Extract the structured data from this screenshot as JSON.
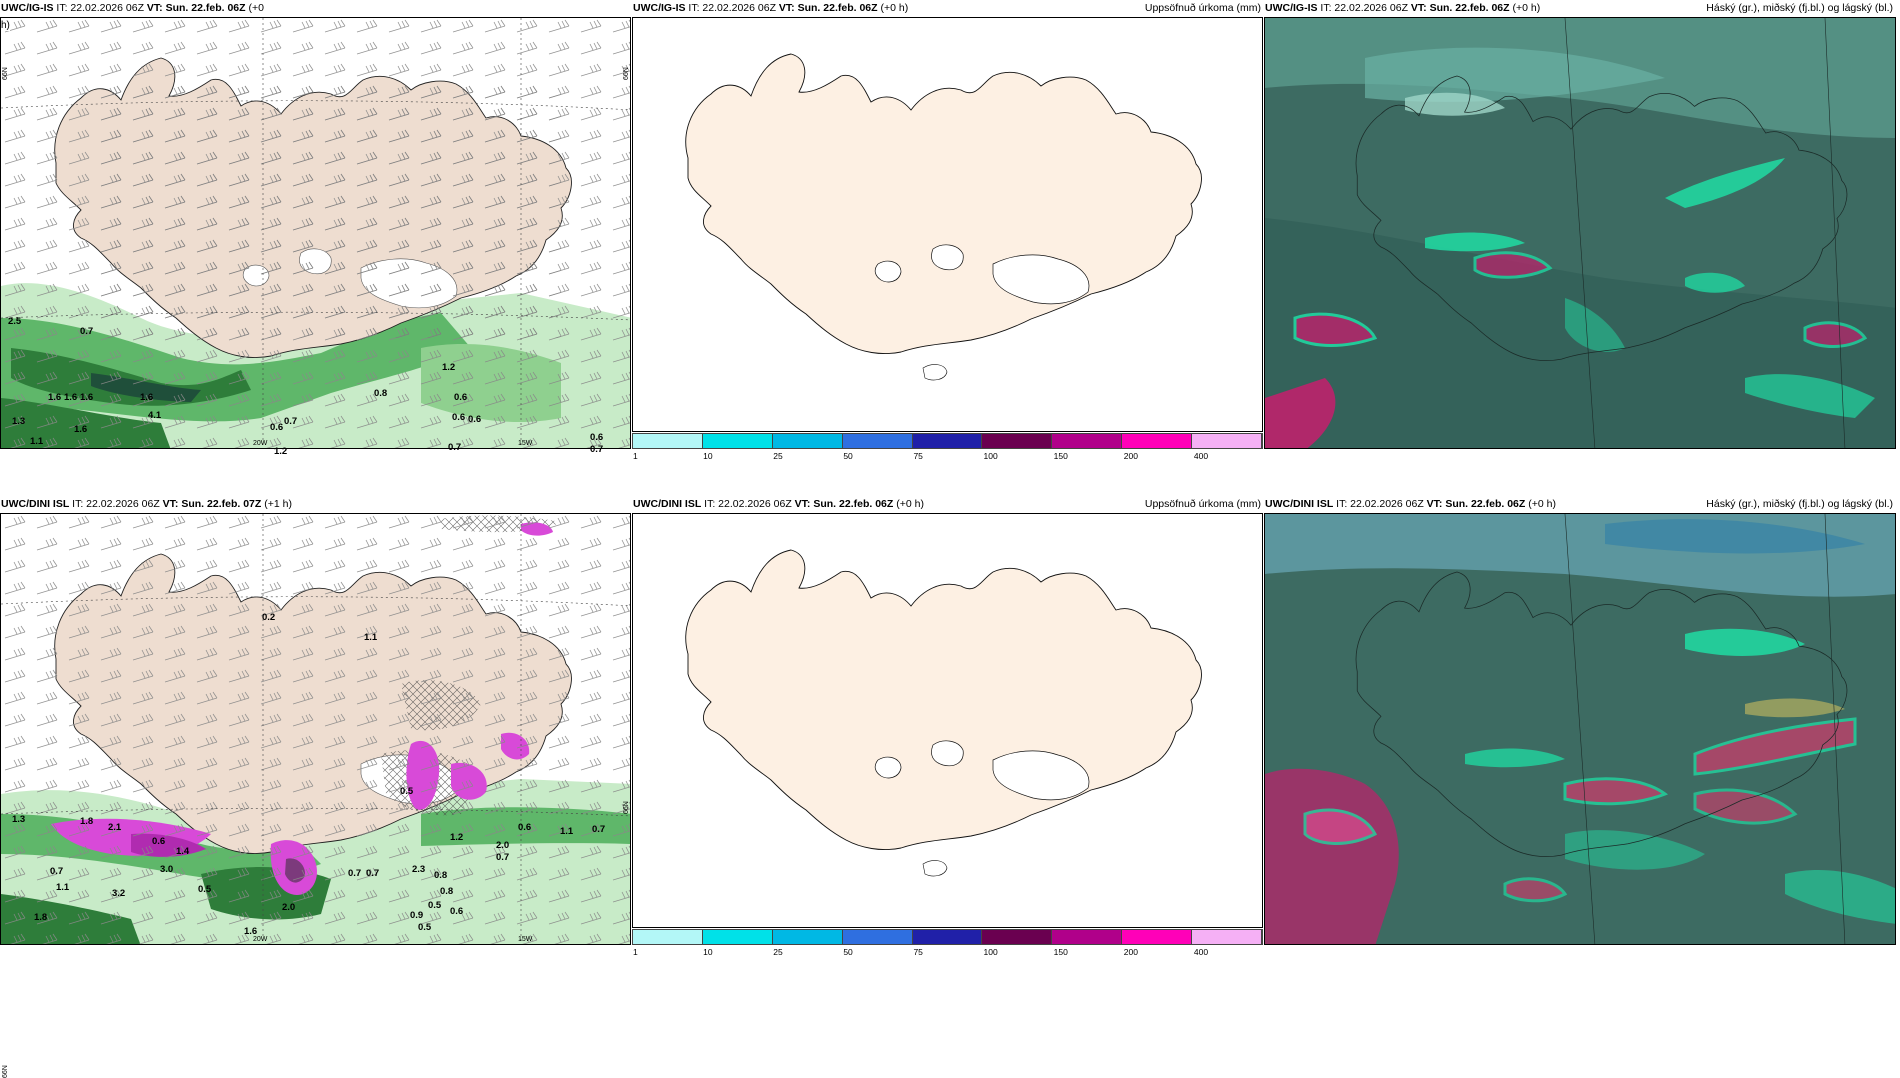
{
  "rows": [
    {
      "panels": [
        {
          "type": "wind-precip",
          "model": "UWC/IG-IS",
          "it": "IT: 22.02.2026 06Z",
          "vt_label": "VT:",
          "vt": "Sun. 22.feb. 06Z",
          "lead": "(+0",
          "lead_cont": "h)",
          "lat_label_a": "66N",
          "lat_label_b": "66N",
          "lon_label_a": "20W",
          "lon_label_b": "15W",
          "values": [
            "2.5",
            "0.7",
            "1.6",
            "1.6",
            "1.6",
            "1.6",
            "4.1",
            "1.3",
            "1.1",
            "1.6",
            "0.7",
            "0.6",
            "0.8",
            "1.2",
            "0.6",
            "0.6",
            "0.6",
            "0.7",
            "1.2",
            "0.6",
            "0.7"
          ]
        },
        {
          "type": "accum",
          "model": "UWC/IG-IS",
          "it": "IT: 22.02.2026 06Z",
          "vt_label": "VT:",
          "vt": "Sun. 22.feb. 06Z",
          "lead": "(+0 h)",
          "right_title": "Uppsöfnuð úrkoma (mm)",
          "colorbar": {
            "ticks": [
              "1",
              "10",
              "25",
              "50",
              "75",
              "100",
              "150",
              "200",
              "400"
            ],
            "colors": [
              "#b3f7f7",
              "#00e1e8",
              "#00b8e4",
              "#2f6fe0",
              "#2020a8",
              "#6a0050",
              "#b0008a",
              "#ff00b8",
              "#f5b0f5"
            ]
          }
        },
        {
          "type": "cloud",
          "model": "UWC/IG-IS",
          "it": "IT: 22.02.2026 06Z",
          "vt_label": "VT:",
          "vt": "Sun. 22.feb. 06Z",
          "lead": "(+0 h)",
          "right_title": "Háský (gr.), miðský (fj.bl.) og lágský (bl.)"
        }
      ]
    },
    {
      "panels": [
        {
          "type": "wind-precip",
          "model": "UWC/DINI ISL",
          "it": "IT: 22.02.2026 06Z",
          "vt_label": "VT:",
          "vt": "Sun. 22.feb. 07Z",
          "lead": "(+1 h)",
          "lead_cont": "",
          "lat_label_a": "66N",
          "lat_label_b": "66N",
          "lon_label_a": "20W",
          "lon_label_b": "15W",
          "values": [
            "1.3",
            "1.8",
            "2.1",
            "0.6",
            "1.4",
            "3.0",
            "0.7",
            "1.1",
            "3.2",
            "0.5",
            "2.0",
            "0.7",
            "0.7",
            "2.3",
            "0.8",
            "0.5",
            "0.9",
            "0.6",
            "0.5",
            "1.6",
            "1.8",
            "0.6",
            "1.1",
            "0.7",
            "2.0",
            "0.7",
            "1.2",
            "0.8",
            "0.5",
            "0.2",
            "1.1"
          ]
        },
        {
          "type": "accum",
          "model": "UWC/DINI ISL",
          "it": "IT: 22.02.2026 06Z",
          "vt_label": "VT:",
          "vt": "Sun. 22.feb. 06Z",
          "lead": "(+0 h)",
          "right_title": "Uppsöfnuð úrkoma (mm)",
          "colorbar": {
            "ticks": [
              "1",
              "10",
              "25",
              "50",
              "75",
              "100",
              "150",
              "200",
              "400"
            ],
            "colors": [
              "#b3f7f7",
              "#00e1e8",
              "#00b8e4",
              "#2f6fe0",
              "#2020a8",
              "#6a0050",
              "#b0008a",
              "#ff00b8",
              "#f5b0f5"
            ]
          }
        },
        {
          "type": "cloud",
          "model": "UWC/DINI ISL",
          "it": "IT: 22.02.2026 06Z",
          "vt_label": "VT:",
          "vt": "Sun. 22.feb. 06Z",
          "lead": "(+0 h)",
          "right_title": "Háský (gr.), miðský (fj.bl.) og lágský (bl.)"
        }
      ]
    }
  ],
  "colors": {
    "land_tan": "#eeddd0",
    "land_cream": "#fdf0e3",
    "sea": "#ffffff",
    "cloud_base": "#3c6b62",
    "cloud_teal": "#21d6a0",
    "cloud_magenta": "#b0286a"
  }
}
